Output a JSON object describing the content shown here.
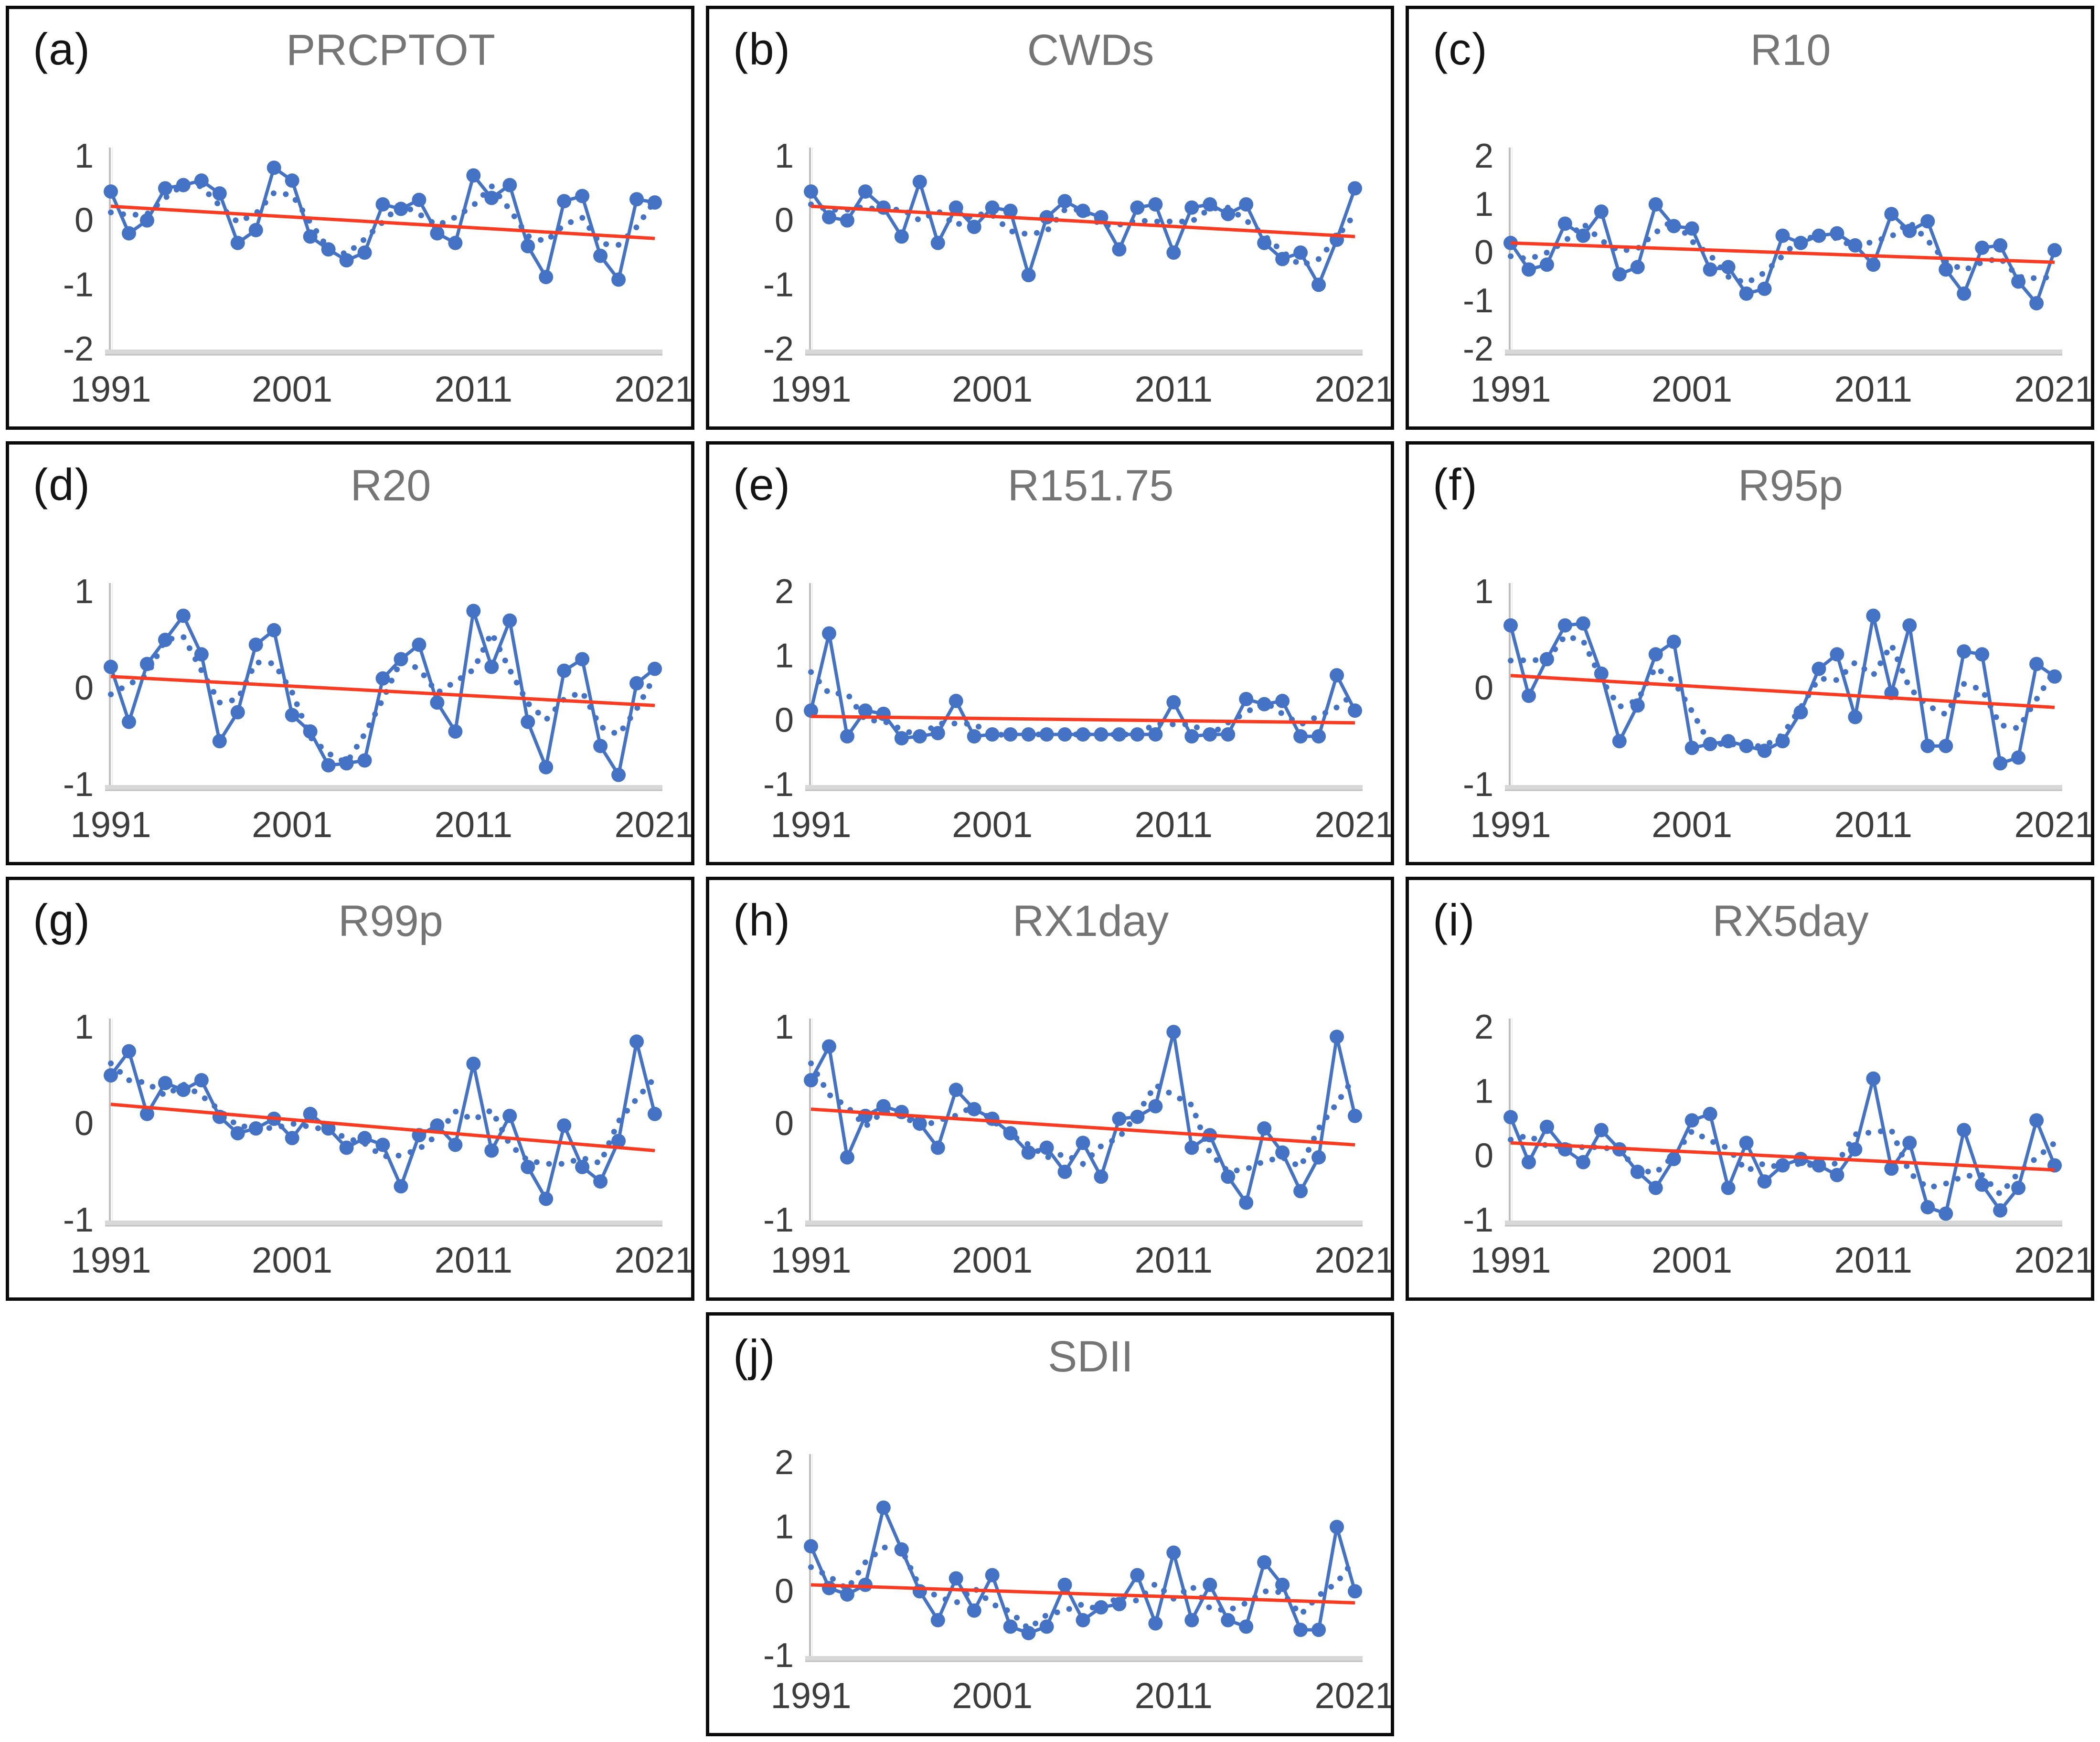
{
  "figure": {
    "background": "#ffffff",
    "panel_border_color": "#0b0b0b",
    "series_color": "#4472C4",
    "trend_color": "#F93B22",
    "axis_line_color": "#BFBFBF",
    "baseline_color": "#D8D8D8",
    "tick_text_color": "#3d3d3d",
    "title_text_color": "#757575",
    "letter_text_color": "#141414"
  },
  "chart_data": [
    {
      "type": "line",
      "letter": "(a)",
      "title": "PRCPTOT",
      "x_range": [
        1991,
        2021
      ],
      "xticks": [
        1991,
        2001,
        2011,
        2021
      ],
      "yticks": [
        1,
        0,
        -1,
        -2
      ],
      "ylim": [
        -2,
        1
      ],
      "legend": "none",
      "grid": "off",
      "series_notes": {
        "solid": "annual anomaly with round markers",
        "dotted": "smoothed (3-point moving average)",
        "red": "linear trend"
      },
      "trend": {
        "start": 0.22,
        "end": -0.28
      },
      "values": [
        0.45,
        -0.2,
        0.0,
        0.5,
        0.55,
        0.62,
        0.42,
        -0.35,
        -0.15,
        0.82,
        0.62,
        -0.25,
        -0.45,
        -0.62,
        -0.5,
        0.25,
        0.18,
        0.32,
        -0.2,
        -0.35,
        0.7,
        0.35,
        0.55,
        -0.4,
        -0.88,
        0.3,
        0.38,
        -0.55,
        -0.92,
        0.33,
        0.28
      ]
    },
    {
      "type": "line",
      "letter": "(b)",
      "title": "CWDs",
      "x_range": [
        1991,
        2021
      ],
      "xticks": [
        1991,
        2001,
        2011,
        2021
      ],
      "yticks": [
        1,
        0,
        -1,
        -2
      ],
      "ylim": [
        -2,
        1
      ],
      "legend": "none",
      "grid": "off",
      "series_notes": {
        "solid": "annual anomaly with round markers",
        "dotted": "smoothed (3-point moving average)",
        "red": "linear trend"
      },
      "trend": {
        "start": 0.22,
        "end": -0.25
      },
      "values": [
        0.45,
        0.05,
        0.0,
        0.45,
        0.2,
        -0.25,
        0.6,
        -0.35,
        0.2,
        -0.1,
        0.2,
        0.15,
        -0.85,
        0.05,
        0.3,
        0.15,
        0.05,
        -0.45,
        0.2,
        0.25,
        -0.5,
        0.2,
        0.25,
        0.1,
        0.25,
        -0.35,
        -0.6,
        -0.5,
        -1.0,
        -0.3,
        0.5
      ]
    },
    {
      "type": "line",
      "letter": "(c)",
      "title": "R10",
      "x_range": [
        1991,
        2021
      ],
      "xticks": [
        1991,
        2001,
        2011,
        2021
      ],
      "yticks": [
        2,
        1,
        0,
        -1,
        -2
      ],
      "ylim": [
        -2,
        2
      ],
      "legend": "none",
      "grid": "off",
      "series_notes": {
        "solid": "annual anomaly with round markers",
        "dotted": "smoothed (3-point moving average)",
        "red": "linear trend"
      },
      "trend": {
        "start": 0.2,
        "end": -0.2
      },
      "values": [
        0.2,
        -0.35,
        -0.25,
        0.6,
        0.35,
        0.85,
        -0.45,
        -0.3,
        1.0,
        0.55,
        0.5,
        -0.35,
        -0.3,
        -0.85,
        -0.75,
        0.35,
        0.2,
        0.35,
        0.4,
        0.15,
        -0.25,
        0.8,
        0.45,
        0.65,
        -0.35,
        -0.85,
        0.1,
        0.15,
        -0.6,
        -1.05,
        0.05
      ]
    },
    {
      "type": "line",
      "letter": "(d)",
      "title": "R20",
      "x_range": [
        1991,
        2021
      ],
      "xticks": [
        1991,
        2001,
        2011,
        2021
      ],
      "yticks": [
        1,
        0,
        -1
      ],
      "ylim": [
        -1,
        1
      ],
      "legend": "none",
      "grid": "off",
      "series_notes": {
        "solid": "annual anomaly with round markers",
        "dotted": "smoothed (3-point moving average)",
        "red": "linear trend"
      },
      "trend": {
        "start": 0.12,
        "end": -0.18
      },
      "values": [
        0.22,
        -0.35,
        0.25,
        0.5,
        0.75,
        0.35,
        -0.55,
        -0.25,
        0.45,
        0.6,
        -0.28,
        -0.45,
        -0.8,
        -0.78,
        -0.75,
        0.1,
        0.3,
        0.45,
        -0.15,
        -0.45,
        0.8,
        0.22,
        0.7,
        -0.35,
        -0.82,
        0.18,
        0.3,
        -0.6,
        -0.9,
        0.05,
        0.2
      ]
    },
    {
      "type": "line",
      "letter": "(e)",
      "title": "R151.75",
      "x_range": [
        1991,
        2021
      ],
      "xticks": [
        1991,
        2001,
        2011,
        2021
      ],
      "yticks": [
        2,
        1,
        0,
        -1
      ],
      "ylim": [
        -1,
        2
      ],
      "legend": "none",
      "grid": "off",
      "series_notes": {
        "solid": "annual anomaly with round markers",
        "dotted": "smoothed (3-point moving average)",
        "red": "linear trend"
      },
      "trend": {
        "start": 0.06,
        "end": -0.04
      },
      "values": [
        0.15,
        1.35,
        -0.25,
        0.15,
        0.1,
        -0.28,
        -0.25,
        -0.2,
        0.3,
        -0.25,
        -0.22,
        -0.22,
        -0.22,
        -0.22,
        -0.22,
        -0.22,
        -0.22,
        -0.22,
        -0.22,
        -0.22,
        0.28,
        -0.25,
        -0.22,
        -0.22,
        0.33,
        0.25,
        0.3,
        -0.25,
        -0.25,
        0.7,
        0.15
      ]
    },
    {
      "type": "line",
      "letter": "(f)",
      "title": "R95p",
      "x_range": [
        1991,
        2021
      ],
      "xticks": [
        1991,
        2001,
        2011,
        2021
      ],
      "yticks": [
        1,
        0,
        -1
      ],
      "ylim": [
        -1,
        1
      ],
      "legend": "none",
      "grid": "off",
      "series_notes": {
        "solid": "annual anomaly with round markers",
        "dotted": "smoothed (3-point moving average)",
        "red": "linear trend"
      },
      "trend": {
        "start": 0.13,
        "end": -0.2
      },
      "values": [
        0.65,
        -0.08,
        0.3,
        0.65,
        0.67,
        0.15,
        -0.55,
        -0.18,
        0.35,
        0.48,
        -0.62,
        -0.58,
        -0.55,
        -0.6,
        -0.65,
        -0.55,
        -0.25,
        0.2,
        0.35,
        -0.3,
        0.75,
        -0.05,
        0.65,
        -0.6,
        -0.6,
        0.38,
        0.35,
        -0.78,
        -0.72,
        0.25,
        0.12
      ]
    },
    {
      "type": "line",
      "letter": "(g)",
      "title": "R99p",
      "x_range": [
        1991,
        2021
      ],
      "xticks": [
        1991,
        2001,
        2011,
        2021
      ],
      "yticks": [
        1,
        0,
        -1
      ],
      "ylim": [
        -1,
        1
      ],
      "legend": "none",
      "grid": "off",
      "series_notes": {
        "solid": "annual anomaly with round markers",
        "dotted": "smoothed (3-point moving average)",
        "red": "linear trend"
      },
      "trend": {
        "start": 0.2,
        "end": -0.28
      },
      "values": [
        0.5,
        0.75,
        0.1,
        0.42,
        0.35,
        0.45,
        0.07,
        -0.1,
        -0.05,
        0.05,
        -0.15,
        0.1,
        -0.05,
        -0.25,
        -0.15,
        -0.22,
        -0.65,
        -0.12,
        -0.02,
        -0.22,
        0.62,
        -0.28,
        0.08,
        -0.45,
        -0.78,
        -0.02,
        -0.45,
        -0.6,
        -0.18,
        0.85,
        0.1
      ]
    },
    {
      "type": "line",
      "letter": "(h)",
      "title": "RX1day",
      "x_range": [
        1991,
        2021
      ],
      "xticks": [
        1991,
        2001,
        2011,
        2021
      ],
      "yticks": [
        1,
        0,
        -1
      ],
      "ylim": [
        -1,
        1
      ],
      "legend": "none",
      "grid": "off",
      "series_notes": {
        "solid": "annual anomaly with round markers",
        "dotted": "smoothed (3-point moving average)",
        "red": "linear trend"
      },
      "trend": {
        "start": 0.15,
        "end": -0.22
      },
      "values": [
        0.45,
        0.8,
        -0.35,
        0.08,
        0.18,
        0.12,
        0.0,
        -0.25,
        0.35,
        0.15,
        0.05,
        -0.1,
        -0.3,
        -0.25,
        -0.5,
        -0.2,
        -0.55,
        0.05,
        0.07,
        0.18,
        0.95,
        -0.25,
        -0.12,
        -0.55,
        -0.82,
        -0.05,
        -0.3,
        -0.7,
        -0.35,
        0.9,
        0.08
      ]
    },
    {
      "type": "line",
      "letter": "(i)",
      "title": "RX5day",
      "x_range": [
        1991,
        2021
      ],
      "xticks": [
        1991,
        2001,
        2011,
        2021
      ],
      "yticks": [
        2,
        1,
        0,
        -1
      ],
      "ylim": [
        -1,
        2
      ],
      "legend": "none",
      "grid": "off",
      "series_notes": {
        "solid": "annual anomaly with round markers",
        "dotted": "smoothed (3-point moving average)",
        "red": "linear trend"
      },
      "trend": {
        "start": 0.2,
        "end": -0.22
      },
      "values": [
        0.6,
        -0.1,
        0.45,
        0.1,
        -0.1,
        0.4,
        0.1,
        -0.25,
        -0.5,
        -0.05,
        0.55,
        0.65,
        -0.5,
        0.2,
        -0.4,
        -0.15,
        -0.05,
        -0.15,
        -0.3,
        0.1,
        1.2,
        -0.2,
        0.2,
        -0.8,
        -0.9,
        0.4,
        -0.45,
        -0.85,
        -0.5,
        0.55,
        -0.15
      ]
    },
    {
      "type": "line",
      "letter": "(j)",
      "title": "SDII",
      "x_range": [
        1991,
        2021
      ],
      "xticks": [
        1991,
        2001,
        2011,
        2021
      ],
      "yticks": [
        2,
        1,
        0,
        -1
      ],
      "ylim": [
        -1,
        2
      ],
      "legend": "none",
      "grid": "off",
      "series_notes": {
        "solid": "annual anomaly with round markers",
        "dotted": "smoothed (3-point moving average)",
        "red": "linear trend"
      },
      "trend": {
        "start": 0.1,
        "end": -0.18
      },
      "values": [
        0.7,
        0.05,
        -0.05,
        0.1,
        1.3,
        0.65,
        0.0,
        -0.45,
        0.2,
        -0.3,
        0.25,
        -0.55,
        -0.65,
        -0.55,
        0.1,
        -0.45,
        -0.25,
        -0.2,
        0.25,
        -0.5,
        0.6,
        -0.45,
        0.1,
        -0.45,
        -0.55,
        0.45,
        0.1,
        -0.6,
        -0.6,
        1.0,
        0.0
      ]
    }
  ]
}
